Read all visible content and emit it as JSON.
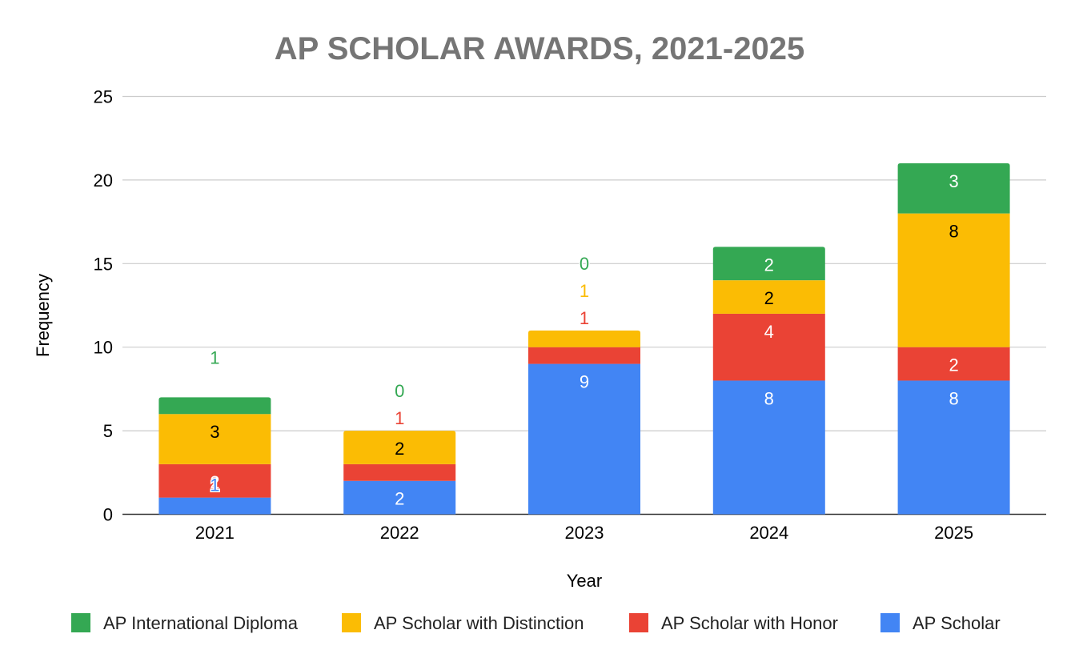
{
  "chart_data": {
    "type": "bar",
    "stacked": true,
    "title": "AP SCHOLAR AWARDS, 2021-2025",
    "xlabel": "Year",
    "ylabel": "Frequency",
    "ylim": [
      0,
      25
    ],
    "yticks": [
      0,
      5,
      10,
      15,
      20,
      25
    ],
    "grid": true,
    "legend_position": "bottom",
    "categories": [
      "2021",
      "2022",
      "2023",
      "2024",
      "2025"
    ],
    "series": [
      {
        "name": "AP Scholar",
        "color": "#4285F4",
        "values": [
          1,
          2,
          9,
          8,
          8
        ]
      },
      {
        "name": "AP Scholar with Honor",
        "color": "#EA4335",
        "values": [
          2,
          1,
          1,
          4,
          2
        ]
      },
      {
        "name": "AP Scholar with Distinction",
        "color": "#FBBC04",
        "values": [
          3,
          2,
          1,
          2,
          8
        ]
      },
      {
        "name": "AP International Diploma",
        "color": "#34A853",
        "values": [
          1,
          0,
          0,
          2,
          3
        ]
      }
    ],
    "legend_order": [
      "AP International Diploma",
      "AP Scholar with Distinction",
      "AP Scholar with Honor",
      "AP Scholar"
    ]
  }
}
